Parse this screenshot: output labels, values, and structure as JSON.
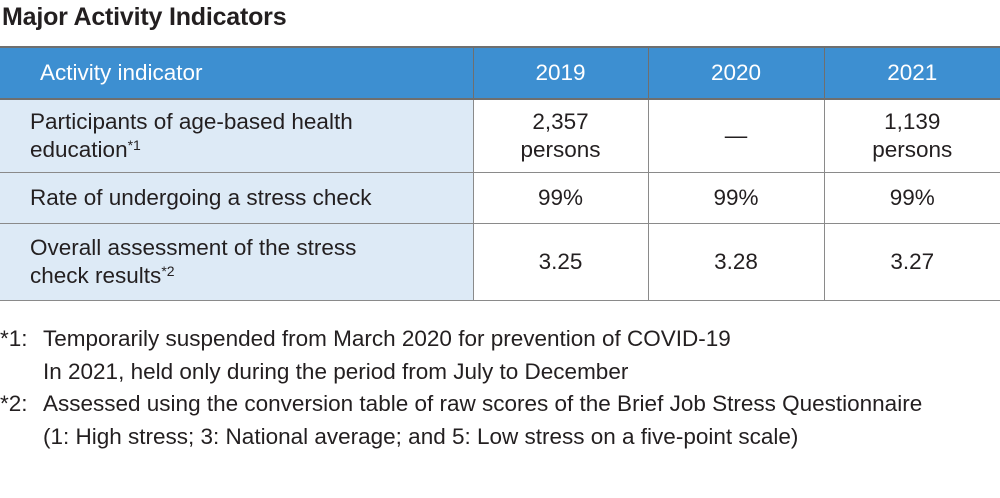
{
  "title": "Major Activity Indicators",
  "table": {
    "headers": [
      "Activity indicator",
      "2019",
      "2020",
      "2021"
    ],
    "rows": [
      {
        "label": "Participants of age-based health education",
        "label_note": "*1",
        "values": [
          "2,357\npersons",
          "—",
          "1,139\npersons"
        ]
      },
      {
        "label": "Rate of undergoing a stress check",
        "label_note": "",
        "values": [
          "99%",
          "99%",
          "99%"
        ]
      },
      {
        "label": "Overall assessment of the stress check results",
        "label_note": "*2",
        "values": [
          "3.25",
          "3.28",
          "3.27"
        ]
      }
    ]
  },
  "notes": [
    {
      "mark": "*1:",
      "lines": [
        "Temporarily suspended from March 2020 for prevention of COVID-19",
        "In 2021, held only during the period from July to December"
      ]
    },
    {
      "mark": "*2:",
      "lines": [
        "Assessed using the conversion table of raw scores of the Brief Job Stress Questionnaire (1: High stress; 3: National average; and 5: Low stress on a five-point scale)"
      ]
    }
  ],
  "colors": {
    "header_bg": "#3d8fd1",
    "label_bg": "#ddeaf6"
  }
}
